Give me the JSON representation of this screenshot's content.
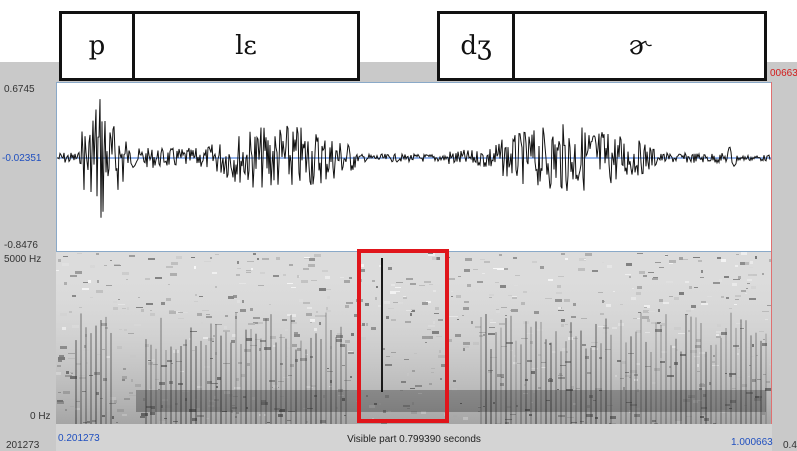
{
  "axes": {
    "wave_top": "0.6745",
    "wave_mid": "-0.02351",
    "wave_bottom": "-0.8476",
    "spec_top": "5000 Hz",
    "spec_bottom": "0 Hz",
    "left_start_clipped": "201273",
    "right_end_clipped": "00663",
    "right_end_clipped_bottom": "0.4"
  },
  "timeline": {
    "start": "0.201273",
    "end": "1.000663",
    "visible_part": "Visible part 0.799390 seconds"
  },
  "segments": [
    {
      "label": "p"
    },
    {
      "label": "lɛ"
    },
    {
      "label": "dʒ"
    },
    {
      "label": "ɚ"
    }
  ],
  "colors": {
    "selection": "#e0151b",
    "axis_blue": "#1f4fbf",
    "axis_red": "#d21b1b"
  }
}
